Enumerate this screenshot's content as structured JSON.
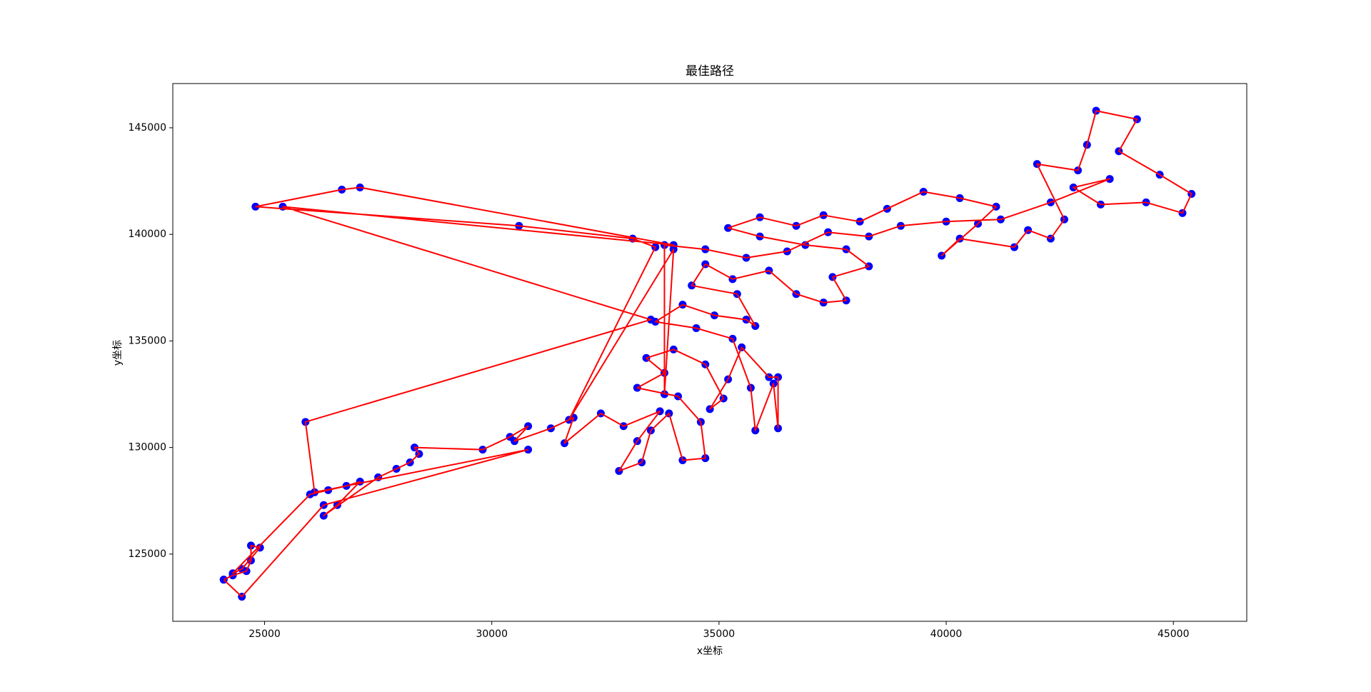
{
  "chart_data": {
    "type": "line",
    "title": "最佳路径",
    "x_label": "x坐标",
    "y_label": "y坐标",
    "line_color": "#ff0000",
    "marker_color": "#0000ff",
    "markers": true,
    "xlim": [
      22980,
      46615
    ],
    "ylim": [
      121846,
      147075
    ],
    "xticks": [
      25000,
      30000,
      35000,
      40000,
      45000
    ],
    "yticks": [
      125000,
      130000,
      135000,
      140000,
      145000
    ],
    "x": [
      24100,
      24300,
      24600,
      24700,
      24700,
      24900,
      24500,
      24300,
      26000,
      26400,
      26800,
      27100,
      26600,
      26300,
      27500,
      27900,
      28200,
      28400,
      28300,
      29800,
      30400,
      30800,
      30500,
      31300,
      31800,
      31600,
      32400,
      32900,
      33700,
      33200,
      32800,
      33300,
      33500,
      33900,
      34200,
      34700,
      34600,
      34100,
      33200,
      33800,
      33400,
      34000,
      34700,
      35100,
      34800,
      35200,
      35500,
      36100,
      36300,
      36300,
      36200,
      35800,
      35700,
      35300,
      34500,
      33600,
      34200,
      34900,
      35600,
      35800,
      35400,
      34400,
      34700,
      35300,
      36100,
      36700,
      37300,
      37800,
      37500,
      38300,
      37800,
      36900,
      35900,
      35200,
      35900,
      36700,
      37300,
      38100,
      38700,
      39500,
      40300,
      41100,
      40700,
      39900,
      40300,
      41500,
      41800,
      42300,
      42600,
      42000,
      42900,
      43100,
      43300,
      44200,
      43800,
      44700,
      45400,
      45200,
      44400,
      43400,
      42800,
      43600,
      42300,
      41200,
      40000,
      39000,
      38300,
      37400,
      36500,
      35600,
      34700,
      33800,
      33800,
      34000,
      31700,
      33600,
      33100,
      30600,
      24800,
      26700,
      27100,
      34000,
      25400,
      33500,
      25900,
      26100,
      30800,
      26300,
      24500,
      24100
    ],
    "values": [
      123800,
      124000,
      124200,
      124700,
      125400,
      125300,
      124300,
      124100,
      127800,
      128000,
      128200,
      128400,
      127300,
      126800,
      128600,
      129000,
      129300,
      129700,
      130000,
      129900,
      130500,
      131000,
      130300,
      130900,
      131400,
      130200,
      131600,
      131000,
      131700,
      130300,
      128900,
      129300,
      130800,
      131600,
      129400,
      129500,
      131200,
      132400,
      132800,
      133500,
      134200,
      134600,
      133900,
      132300,
      131800,
      133200,
      134700,
      133300,
      133300,
      130900,
      133000,
      130800,
      132800,
      135100,
      135600,
      135900,
      136700,
      136200,
      136000,
      135700,
      137200,
      137600,
      138600,
      137900,
      138300,
      137200,
      136800,
      136900,
      138000,
      138500,
      139300,
      139500,
      139900,
      140300,
      140800,
      140400,
      140900,
      140600,
      141200,
      142000,
      141700,
      141300,
      140500,
      139000,
      139800,
      139400,
      140200,
      139800,
      140700,
      143300,
      143000,
      144200,
      145800,
      145400,
      143900,
      142800,
      141900,
      141000,
      141500,
      141400,
      142200,
      142600,
      141500,
      140700,
      140600,
      140400,
      139900,
      140100,
      139200,
      138900,
      139300,
      139500,
      132500,
      139300,
      131300,
      139400,
      139800,
      140400,
      141300,
      142100,
      142200,
      139500,
      141300,
      136000,
      131200,
      127900,
      129900,
      127300,
      123000,
      123800
    ]
  }
}
